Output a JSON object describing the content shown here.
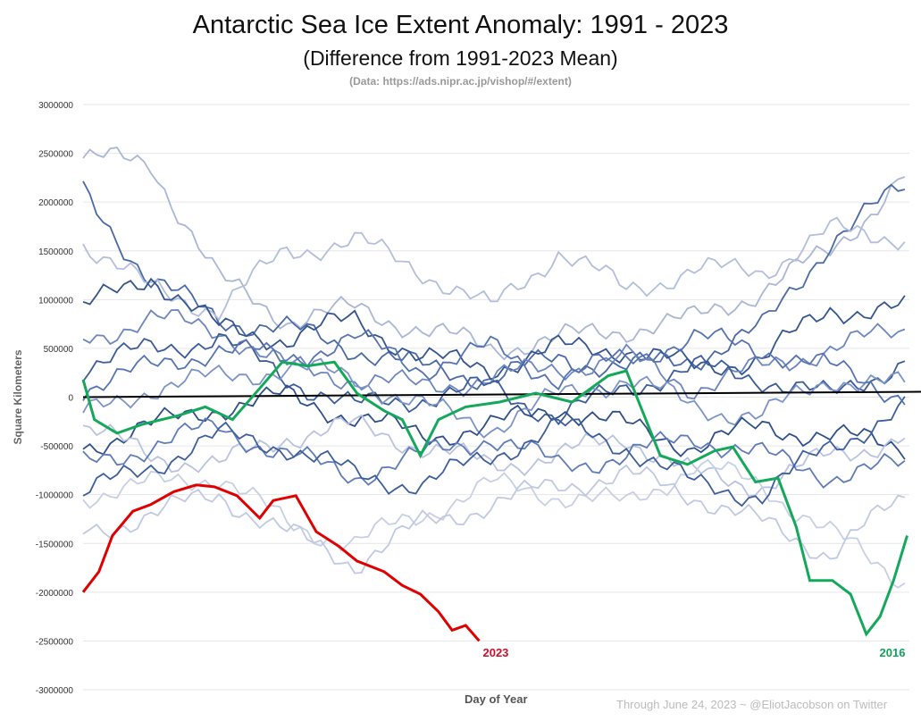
{
  "chart_data": {
    "type": "line",
    "title": "Antarctic Sea Ice Extent Anomaly: 1991 - 2023",
    "subtitle": "(Difference from 1991-2023 Mean)",
    "source": "(Data: https://ads.nipr.ac.jp/vishop/#/extent)",
    "xlabel": "Day of Year",
    "ylabel": "Square Kilometers",
    "footnote": "Through June 24, 2023 ~ @EliotJacobson on Twitter",
    "xlim": [
      0,
      365
    ],
    "ylim": [
      -3000000,
      3000000
    ],
    "yticks": [
      "3000000",
      "2500000",
      "2000000",
      "1500000",
      "1000000",
      "500000",
      "0",
      "-500000",
      "-1000000",
      "-1500000",
      "-2000000",
      "-2500000",
      "-3000000"
    ],
    "grid": true,
    "highlight": [
      {
        "name": "2023",
        "color": "#e00000",
        "x": [
          0,
          7,
          13,
          22,
          30,
          40,
          50,
          58,
          68,
          78,
          84,
          94,
          103,
          113,
          121,
          133,
          141,
          149,
          157,
          163,
          169,
          175
        ],
        "y": [
          -2000000,
          -1790000,
          -1420000,
          -1170000,
          -1100000,
          -970000,
          -900000,
          -920000,
          -1010000,
          -1240000,
          -1060000,
          -1010000,
          -1380000,
          -1530000,
          -1680000,
          -1790000,
          -1930000,
          -2020000,
          -2200000,
          -2390000,
          -2340000,
          -2500000
        ]
      },
      {
        "name": "2016",
        "color": "#14a85a",
        "x": [
          0,
          5,
          15,
          26,
          42,
          54,
          66,
          78,
          88,
          99,
          111,
          121,
          133,
          141,
          149,
          157,
          169,
          184,
          200,
          216,
          232,
          240,
          247,
          255,
          267,
          279,
          287,
          297,
          307,
          315,
          321,
          331,
          339,
          346,
          352,
          358,
          364
        ],
        "y": [
          180000,
          -230000,
          -370000,
          -280000,
          -190000,
          -100000,
          -230000,
          90000,
          360000,
          320000,
          360000,
          40000,
          -140000,
          -230000,
          -600000,
          -230000,
          -100000,
          -50000,
          40000,
          -50000,
          220000,
          270000,
          -140000,
          -600000,
          -690000,
          -550000,
          -510000,
          -870000,
          -830000,
          -1330000,
          -1880000,
          -1880000,
          -2020000,
          -2430000,
          -2250000,
          -1880000,
          -1420000
        ]
      }
    ],
    "background_series_x": [
      0,
      30,
      60,
      90,
      120,
      150,
      180,
      210,
      240,
      270,
      300,
      330,
      365
    ],
    "background_series": [
      {
        "color": "#aab6d6",
        "y": [
          2450000,
          2400000,
          1200000,
          800000,
          900000,
          700000,
          500000,
          600000,
          700000,
          800000,
          1100000,
          1500000,
          2300000
        ]
      },
      {
        "color": "#4a69a8",
        "y": [
          2100000,
          1200000,
          800000,
          700000,
          500000,
          300000,
          200000,
          400000,
          300000,
          400000,
          700000,
          1600000,
          2200000
        ]
      },
      {
        "color": "#b3bedb",
        "y": [
          1600000,
          1100000,
          900000,
          1500000,
          1600000,
          1300000,
          900000,
          1500000,
          1100000,
          1300000,
          1300000,
          1700000,
          1650000
        ]
      },
      {
        "color": "#34558f",
        "y": [
          900000,
          1250000,
          700000,
          600000,
          800000,
          400000,
          300000,
          500000,
          500000,
          300000,
          400000,
          900000,
          900000
        ]
      },
      {
        "color": "#6d86bf",
        "y": [
          600000,
          800000,
          700000,
          300000,
          200000,
          100000,
          200000,
          300000,
          400000,
          100000,
          300000,
          500000,
          700000
        ]
      },
      {
        "color": "#3b5c9a",
        "y": [
          300000,
          500000,
          600000,
          200000,
          -100000,
          0,
          100000,
          -200000,
          100000,
          300000,
          200000,
          0,
          400000
        ]
      },
      {
        "color": "#7b93c8",
        "y": [
          -200000,
          100000,
          200000,
          300000,
          200000,
          -100000,
          -300000,
          0,
          200000,
          -100000,
          -200000,
          200000,
          100000
        ]
      },
      {
        "color": "#2f4f8a",
        "y": [
          -500000,
          -300000,
          -100000,
          0,
          -200000,
          -400000,
          -300000,
          -100000,
          -300000,
          -500000,
          -300000,
          -400000,
          -500000
        ]
      },
      {
        "color": "#b9c3df",
        "y": [
          -300000,
          -600000,
          -700000,
          -400000,
          -300000,
          -500000,
          -700000,
          -600000,
          -400000,
          -800000,
          -900000,
          -600000,
          -400000
        ]
      },
      {
        "color": "#5f7bb8",
        "y": [
          -700000,
          -500000,
          -300000,
          -600000,
          -800000,
          -600000,
          -400000,
          -700000,
          -600000,
          -400000,
          -600000,
          -800000,
          -700000
        ]
      },
      {
        "color": "#c7cfe5",
        "y": [
          -1000000,
          -900000,
          -800000,
          -1300000,
          -1500000,
          -1200000,
          -900000,
          -1000000,
          -1100000,
          -700000,
          -900000,
          -1400000,
          -1900000
        ]
      },
      {
        "color": "#3d5e9c",
        "y": [
          -1000000,
          -700000,
          -400000,
          -500000,
          -800000,
          -900000,
          -600000,
          -300000,
          -500000,
          -900000,
          -1000000,
          -500000,
          -100000
        ]
      },
      {
        "color": "#c0c9e2",
        "y": [
          -1400000,
          -1200000,
          -1000000,
          -1400000,
          -1700000,
          -1300000,
          -1100000,
          -900000,
          -800000,
          -1000000,
          -1300000,
          -1600000,
          -1000000
        ]
      },
      {
        "color": "#5673b2",
        "y": [
          100000,
          300000,
          500000,
          400000,
          600000,
          300000,
          500000,
          200000,
          400000,
          600000,
          500000,
          300000,
          0
        ]
      }
    ]
  }
}
